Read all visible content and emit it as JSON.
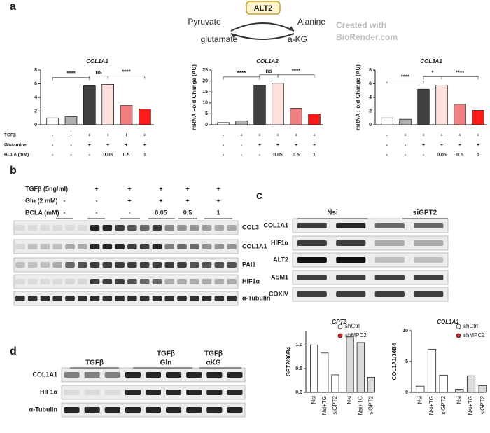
{
  "panel_labels": [
    "a",
    "b",
    "c",
    "d"
  ],
  "diagram": {
    "enzyme": "ALT2",
    "substrates": [
      "Pyruvate",
      "Alanine",
      "glutamate",
      "a-KG"
    ],
    "credit": [
      "Created with",
      "BioRender.com"
    ]
  },
  "chart_data": [
    {
      "type": "bar",
      "title": "COL1A1",
      "values": [
        1.0,
        1.2,
        5.7,
        5.9,
        2.8,
        2.3
      ],
      "colors": [
        "#ffffff",
        "#b0b0b0",
        "#404040",
        "#fde0dc",
        "#f08080",
        "#ff1a1a"
      ],
      "ylim": [
        0,
        8
      ],
      "yticks": [
        0,
        2,
        4,
        6,
        8
      ],
      "annotations": [
        "****",
        "ns",
        "****"
      ],
      "conditions": [
        {
          "label": "TGFβ",
          "values": [
            "-",
            "+",
            "+",
            "+",
            "+",
            "+"
          ]
        },
        {
          "label": "Glutamine",
          "values": [
            "-",
            "-",
            "+",
            "+",
            "+",
            "+"
          ]
        },
        {
          "label": "BCLA (mM)",
          "values": [
            "-",
            "-",
            "-",
            "0.05",
            "0.5",
            "1"
          ]
        }
      ]
    },
    {
      "type": "bar",
      "title": "COL1A2",
      "y_label": "mRNA Fold Change (AU)",
      "values": [
        1.0,
        1.8,
        18,
        19,
        7.5,
        5.0
      ],
      "colors": [
        "#ffffff",
        "#b0b0b0",
        "#404040",
        "#fde0dc",
        "#f08080",
        "#ff1a1a"
      ],
      "ylim": [
        0,
        25
      ],
      "yticks": [
        0,
        5,
        10,
        15,
        20,
        25
      ],
      "annotations": [
        "****",
        "ns",
        "****"
      ],
      "conditions": [
        {
          "values": [
            "-",
            "+",
            "+",
            "+",
            "+",
            "+"
          ]
        },
        {
          "values": [
            "-",
            "-",
            "+",
            "+",
            "+",
            "+"
          ]
        },
        {
          "values": [
            "-",
            "-",
            "-",
            "0.05",
            "0.5",
            "1"
          ]
        }
      ]
    },
    {
      "type": "bar",
      "title": "COL3A1",
      "y_label": "mRNA Fold Change (AU)",
      "values": [
        1.0,
        0.8,
        5.2,
        5.8,
        3.0,
        2.1
      ],
      "colors": [
        "#ffffff",
        "#b0b0b0",
        "#404040",
        "#fde0dc",
        "#f08080",
        "#ff1a1a"
      ],
      "ylim": [
        0,
        8
      ],
      "yticks": [
        0,
        2,
        4,
        6,
        8
      ],
      "annotations": [
        "****",
        "*",
        "****"
      ],
      "conditions": [
        {
          "values": [
            "-",
            "+",
            "+",
            "+",
            "+",
            "+"
          ]
        },
        {
          "values": [
            "-",
            "-",
            "+",
            "+",
            "+",
            "+"
          ]
        },
        {
          "values": [
            "-",
            "-",
            "-",
            "0.05",
            "0.5",
            "1"
          ]
        }
      ]
    },
    {
      "type": "grouped-bar",
      "title": "GPT2",
      "y_label": "GPT2/36B4",
      "categories": [
        "Nsi",
        "Nsi+TG",
        "siGPT2",
        "Nsi",
        "Nsi+TG",
        "siGPT2"
      ],
      "series": [
        {
          "name": "shCtrl",
          "color": "#ffffff",
          "marker_color": "#ffffff",
          "values": [
            1.0,
            0.83,
            0.37,
            null,
            null,
            null
          ]
        },
        {
          "name": "shMPC2",
          "color": "#d9d9d9",
          "marker_color": "#e02020",
          "values": [
            null,
            null,
            null,
            1.17,
            1.05,
            0.32
          ]
        }
      ],
      "ylim": [
        0,
        1.3
      ],
      "yticks": [
        {
          "value": 0,
          "label": "0.0"
        },
        0.5,
        {
          "value": 1,
          "label": "1.0"
        }
      ]
    },
    {
      "type": "grouped-bar",
      "title": "COL1A1",
      "y_label": "COL1A1/36B4",
      "categories": [
        "Nsi",
        "Nsi+TG",
        "siGPT2",
        "Nsi",
        "Nsi+TG",
        "siGPT2"
      ],
      "series": [
        {
          "name": "shCtrl",
          "color": "#ffffff",
          "marker_color": "#ffffff",
          "values": [
            1.0,
            7.0,
            2.8,
            null,
            null,
            null
          ]
        },
        {
          "name": "shMPC2",
          "color": "#d9d9d9",
          "marker_color": "#e02020",
          "values": [
            null,
            null,
            null,
            0.5,
            2.7,
            1.1
          ]
        }
      ],
      "ylim": [
        0,
        10
      ],
      "yticks": [
        0,
        5,
        10
      ]
    }
  ],
  "blot_b": {
    "treatments": [
      {
        "label": "TGFβ (5ng/ml)",
        "values": [
          "-",
          "+",
          "+",
          "+",
          "+",
          "+"
        ]
      },
      {
        "label": "Gln (2 mM)",
        "values": [
          "-",
          "-",
          "+",
          "+",
          "+",
          "+"
        ]
      },
      {
        "label": "BCLA (mM)",
        "values": [
          "-",
          "-",
          "-",
          "0.05",
          "0.5",
          "1"
        ]
      }
    ],
    "rows": [
      "COL3",
      "COL1A1",
      "PAI1",
      "HIF1α",
      "α-Tubulin"
    ]
  },
  "blot_c": {
    "groups": [
      "Nsi",
      "siGPT2"
    ],
    "rows": [
      "COL1A1",
      "HIF1α",
      "ALT2",
      "ASM1",
      "COXIV"
    ]
  },
  "blot_d": {
    "groups": [
      [
        "TGFβ"
      ],
      [
        "TGFβ",
        "Gln"
      ],
      [
        "TGFβ",
        "αKG"
      ]
    ],
    "rows": [
      "COL1A1",
      "HIF1α",
      "α-Tubulin"
    ]
  }
}
